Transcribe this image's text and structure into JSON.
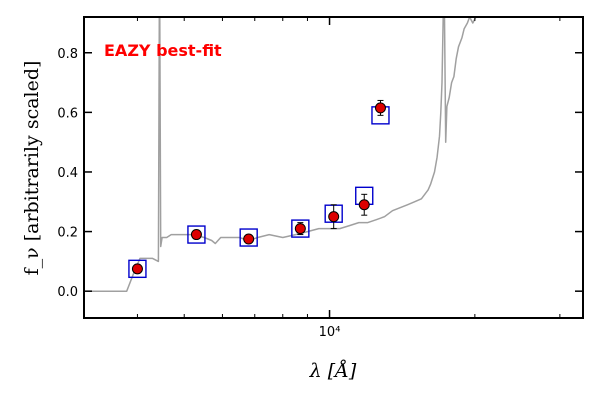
{
  "chart_data": {
    "type": "scatter",
    "title": "",
    "annotation": {
      "text": "EAZY best-fit",
      "color": "#ff0000"
    },
    "xlabel": "λ [Å]",
    "ylabel": "f_ν [arbitrarily scaled]",
    "xscale": "log",
    "xlim": [
      3100,
      33500
    ],
    "ylim": [
      -0.09,
      0.92
    ],
    "yticks": [
      0.0,
      0.2,
      0.4,
      0.6,
      0.8
    ],
    "ytick_labels": [
      "0.0",
      "0.2",
      "0.4",
      "0.6",
      "0.8"
    ],
    "xtick_major": [
      10000
    ],
    "xtick_major_labels": [
      "10⁴"
    ],
    "xtick_minor": [
      4000,
      5000,
      6000,
      7000,
      8000,
      9000,
      20000,
      30000
    ],
    "grid": false,
    "legend": "none",
    "colors": {
      "model_line": "#a0a0a0",
      "observed_face": "#dd0000",
      "observed_edge": "#000000",
      "model_box": "#0000cc",
      "axes": "#000000"
    },
    "series": [
      {
        "kind": "line",
        "x": [
          3150,
          3800,
          3950,
          4050,
          4300,
          4420,
          4440,
          4450,
          4470,
          4500,
          4600,
          4700,
          4900,
          5200,
          5500,
          5700,
          5800,
          5950,
          6200,
          6500,
          6800,
          7100,
          7500,
          8000,
          8500,
          9000,
          9500,
          10000,
          10500,
          11000,
          11500,
          12000,
          12500,
          13000,
          13500,
          14000,
          14500,
          15000,
          15500,
          16000,
          16200,
          16500,
          16700,
          16900,
          17000,
          17100,
          17200,
          17300,
          17400,
          17500,
          17700,
          17900,
          18100,
          18300,
          18500,
          18800,
          19000,
          19300,
          19500,
          19800,
          20100
        ],
        "y": [
          0.0,
          0.0,
          0.07,
          0.11,
          0.11,
          0.1,
          0.92,
          0.92,
          0.15,
          0.18,
          0.18,
          0.19,
          0.19,
          0.19,
          0.18,
          0.17,
          0.16,
          0.18,
          0.18,
          0.18,
          0.17,
          0.18,
          0.19,
          0.18,
          0.19,
          0.2,
          0.21,
          0.21,
          0.21,
          0.22,
          0.23,
          0.23,
          0.24,
          0.25,
          0.27,
          0.28,
          0.29,
          0.3,
          0.31,
          0.34,
          0.36,
          0.4,
          0.45,
          0.52,
          0.6,
          0.7,
          0.92,
          0.92,
          0.5,
          0.62,
          0.65,
          0.7,
          0.72,
          0.78,
          0.82,
          0.85,
          0.88,
          0.9,
          0.92,
          0.9,
          0.92
        ]
      },
      {
        "kind": "model_boxes",
        "x": [
          4000,
          5300,
          6800,
          8700,
          10200,
          11800
        ],
        "y": [
          0.075,
          0.19,
          0.18,
          0.21,
          0.26,
          0.32
        ]
      },
      {
        "kind": "model_boxes",
        "x": [
          12750
        ],
        "y": [
          0.59
        ]
      },
      {
        "kind": "observed_points",
        "x": [
          4000,
          5300,
          6800,
          8700,
          10200,
          11800,
          12750
        ],
        "y": [
          0.075,
          0.19,
          0.175,
          0.21,
          0.25,
          0.29,
          0.615
        ],
        "yerr": [
          0.012,
          0.01,
          0.01,
          0.02,
          0.04,
          0.035,
          0.025
        ]
      }
    ]
  }
}
